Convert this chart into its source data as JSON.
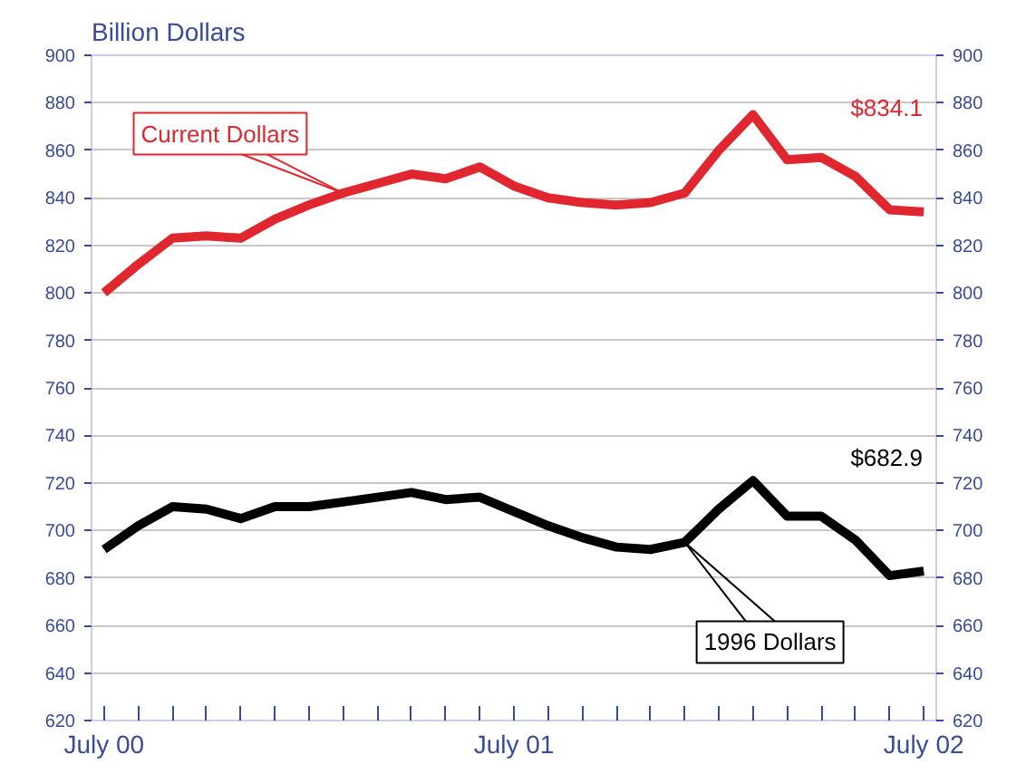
{
  "chart_data": {
    "type": "line",
    "ylabel": "Billion Dollars",
    "x": [
      "2000-07",
      "2000-08",
      "2000-09",
      "2000-10",
      "2000-11",
      "2000-12",
      "2001-01",
      "2001-02",
      "2001-03",
      "2001-04",
      "2001-05",
      "2001-06",
      "2001-07",
      "2001-08",
      "2001-09",
      "2001-10",
      "2001-11",
      "2001-12",
      "2002-01",
      "2002-02",
      "2002-03",
      "2002-04",
      "2002-05",
      "2002-06",
      "2002-07"
    ],
    "series": [
      {
        "name": "Current Dollars",
        "color": "#e0262e",
        "values": [
          800,
          812,
          823,
          824,
          823,
          831,
          837,
          842,
          846,
          850,
          848,
          853,
          845,
          840,
          838,
          837,
          838,
          842,
          860,
          875,
          856,
          857,
          849,
          835,
          834.1
        ]
      },
      {
        "name": "1996 Dollars",
        "color": "#000000",
        "values": [
          692,
          702,
          710,
          709,
          705,
          710,
          710,
          712,
          714,
          716,
          713,
          714,
          708,
          702,
          697,
          693,
          692,
          695,
          709,
          721,
          706,
          706,
          696,
          681,
          682.9
        ]
      }
    ],
    "annotations": [
      "$834.1",
      "$682.9"
    ],
    "xlim": [
      "2000-06-20",
      "2002-07-12"
    ],
    "xticks": [
      {
        "value": "2000-07",
        "label": "July 00"
      },
      {
        "value": "2000-08",
        "label": null
      },
      {
        "value": "2000-09",
        "label": null
      },
      {
        "value": "2000-10",
        "label": null
      },
      {
        "value": "2000-11",
        "label": null
      },
      {
        "value": "2000-12",
        "label": null
      },
      {
        "value": "2001-01",
        "label": null
      },
      {
        "value": "2001-02",
        "label": null
      },
      {
        "value": "2001-03",
        "label": null
      },
      {
        "value": "2001-04",
        "label": null
      },
      {
        "value": "2001-05",
        "label": null
      },
      {
        "value": "2001-06",
        "label": null
      },
      {
        "value": "2001-07",
        "label": "July 01"
      },
      {
        "value": "2001-08",
        "label": null
      },
      {
        "value": "2001-09",
        "label": null
      },
      {
        "value": "2001-10",
        "label": null
      },
      {
        "value": "2001-11",
        "label": null
      },
      {
        "value": "2001-12",
        "label": null
      },
      {
        "value": "2002-01",
        "label": null
      },
      {
        "value": "2002-02",
        "label": null
      },
      {
        "value": "2002-03",
        "label": null
      },
      {
        "value": "2002-04",
        "label": null
      },
      {
        "value": "2002-05",
        "label": null
      },
      {
        "value": "2002-06",
        "label": null
      },
      {
        "value": "2002-07",
        "label": "July 02"
      }
    ],
    "ylim": [
      620,
      900
    ],
    "yticks": [
      620,
      640,
      660,
      680,
      700,
      720,
      740,
      760,
      780,
      800,
      820,
      840,
      860,
      880,
      900
    ],
    "y2lim": [
      620,
      900
    ],
    "y2ticks": [
      620,
      640,
      660,
      680,
      700,
      720,
      740,
      760,
      780,
      800,
      820,
      840,
      860,
      880,
      900
    ],
    "grid": "y",
    "marker": "none",
    "line_style": "solid"
  }
}
